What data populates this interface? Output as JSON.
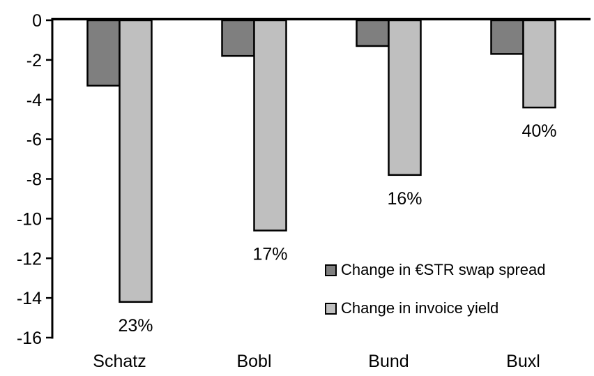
{
  "chart_data": {
    "type": "bar",
    "title": "",
    "xlabel": "",
    "ylabel": "",
    "categories": [
      "Schatz",
      "Bobl",
      "Bund",
      "Buxl"
    ],
    "series": [
      {
        "name": "Change in €STR swap spread",
        "color": "#7f7f7f",
        "values": [
          -3.3,
          -1.8,
          -1.3,
          -1.7
        ]
      },
      {
        "name": "Change in invoice yield",
        "color": "#bfbfbf",
        "values": [
          -14.2,
          -10.6,
          -7.8,
          -4.4
        ],
        "data_labels": [
          "23%",
          "17%",
          "16%",
          "40%"
        ]
      }
    ],
    "ylim": [
      -16,
      0
    ],
    "yticks": [
      0,
      -2,
      -4,
      -6,
      -8,
      -10,
      -12,
      -14,
      -16
    ],
    "grid": false,
    "legend_position": "inside-right",
    "bar_border_color": "#000000",
    "axis_color": "#000000",
    "background_color": "#ffffff"
  }
}
